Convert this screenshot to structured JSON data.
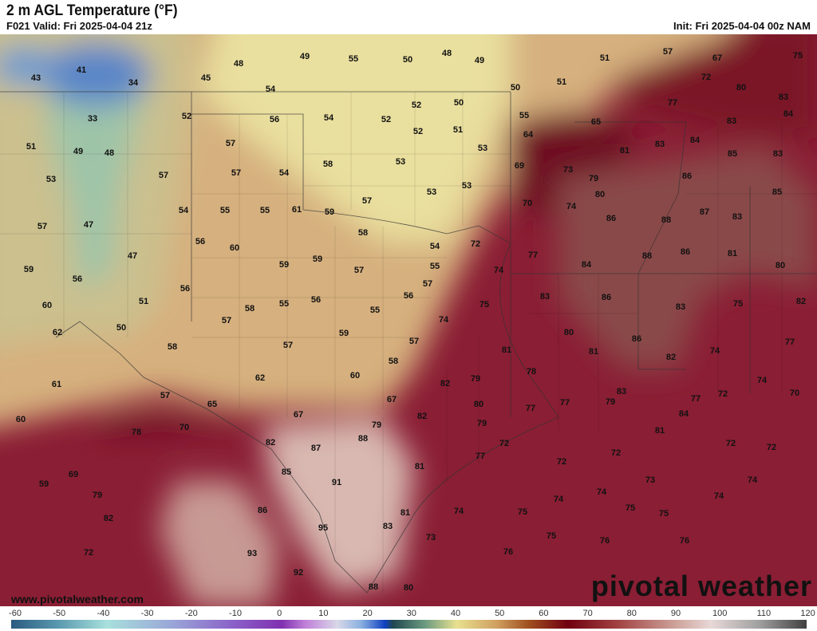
{
  "header": {
    "title": "2 m AGL Temperature (°F)",
    "valid": "F021 Valid: Fri 2025-04-04 21z",
    "init": "Init: Fri 2025-04-04 00z NAM"
  },
  "watermark": "www.pivotalweather.com",
  "logo": "pivotal weather",
  "colorbar": {
    "ticks": [
      "-60",
      "-50",
      "-40",
      "-30",
      "-20",
      "-10",
      "0",
      "10",
      "20",
      "30",
      "40",
      "50",
      "60",
      "70",
      "80",
      "90",
      "100",
      "110",
      "120"
    ],
    "units": "°F"
  },
  "temperature_labels": [
    43,
    41,
    34,
    45,
    48,
    49,
    55,
    50,
    48,
    49,
    51,
    57,
    67,
    75,
    50,
    51,
    72,
    80,
    83,
    54,
    52,
    56,
    54,
    52,
    52,
    50,
    55,
    65,
    77,
    83,
    84,
    33,
    51,
    49,
    48,
    57,
    51,
    52,
    64,
    81,
    83,
    84,
    85,
    83,
    53,
    57,
    57,
    54,
    58,
    53,
    53,
    69,
    73,
    79,
    86,
    54,
    55,
    55,
    61,
    59,
    57,
    53,
    53,
    80,
    70,
    74,
    86,
    88,
    87,
    83,
    85,
    57,
    47,
    56,
    60,
    58,
    54,
    72,
    77,
    59,
    59,
    57,
    55,
    84,
    88,
    86,
    81,
    80,
    59,
    47,
    56,
    56,
    57,
    74,
    56,
    83,
    86,
    83,
    75,
    82,
    60,
    51,
    58,
    55,
    56,
    55,
    75,
    62,
    50,
    57,
    74,
    80,
    86,
    77,
    58,
    57,
    59,
    57,
    81,
    81,
    74,
    82,
    61,
    62,
    60,
    58,
    78,
    79,
    82,
    74,
    72,
    70,
    57,
    67,
    65,
    83,
    80,
    77,
    79,
    77,
    77,
    84,
    60,
    70,
    67,
    82,
    79,
    79,
    81,
    78,
    88,
    82,
    87,
    72,
    72,
    72,
    77,
    72,
    72,
    81,
    85,
    69,
    59,
    91,
    73,
    74,
    79,
    74,
    74,
    74,
    81,
    74,
    75,
    75,
    75,
    82,
    86,
    83,
    95,
    73,
    75,
    76,
    76,
    72,
    93,
    76,
    92,
    88,
    80
  ],
  "colors": {
    "cold": "#4a7ac8",
    "cool": "#8fb8a0",
    "mild": "#ece3a2",
    "warm": "#d2a878",
    "hot": "#8a1e34",
    "veryhot": "#6a0f20",
    "extreme": "#d8b8b0"
  }
}
